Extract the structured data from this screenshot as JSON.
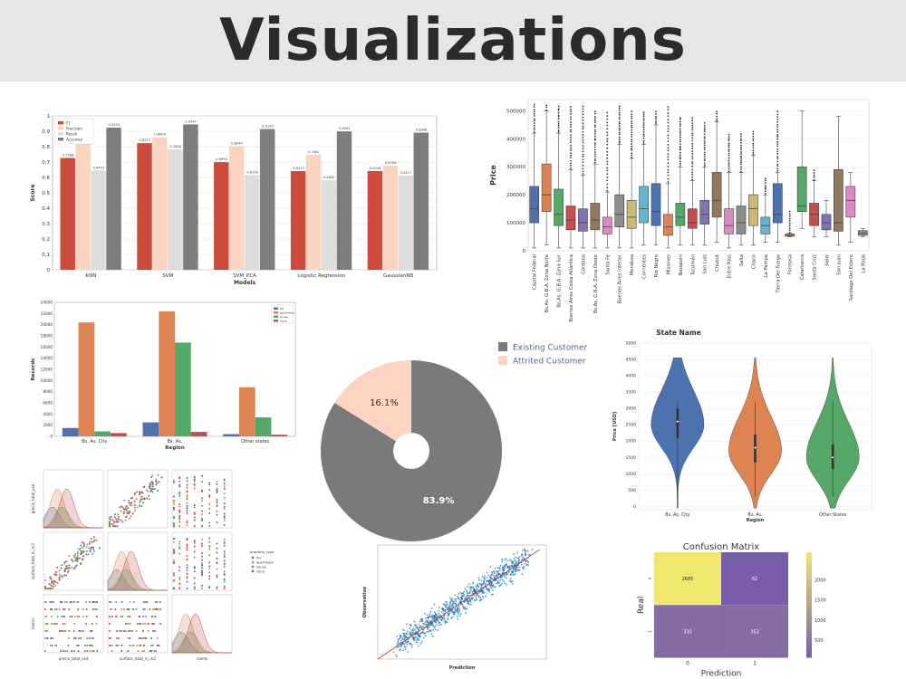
{
  "page": {
    "title": "Visualizations"
  },
  "chart_data": [
    {
      "id": "model-scores",
      "type": "bar",
      "title": "",
      "xlabel": "Models",
      "ylabel": "Score",
      "ylim": [
        0,
        1
      ],
      "yticks": [
        "0",
        "0.1",
        "0.2",
        "0.3",
        "0.4",
        "0.5",
        "0.6",
        "0.7",
        "0.8",
        "0.9",
        "1"
      ],
      "legend_position": "top-left",
      "categories": [
        "KNN",
        "SVM",
        "SVM_PCA",
        "Logistic Regression",
        "GaussianNB"
      ],
      "series": [
        {
          "name": "F1",
          "color": "#cc4b3c",
          "values": [
            0.7268,
            0.8227,
            0.6994,
            0.6413,
            0.6416
          ],
          "labels": [
            "0.7268",
            "0.8227",
            "0.6994",
            "0.6413",
            "0.6416"
          ]
        },
        {
          "name": "Precision",
          "color": "#fad4c0",
          "values": [
            0.8408,
            0.8604,
            0.804,
            0.7482,
            0.6765
          ],
          "labels": [
            "0.8408",
            "0.8604",
            "0.8040",
            "0.7482",
            "0.6765"
          ]
        },
        {
          "name": "Recall",
          "color": "#dcdcdc",
          "values": [
            0.6453,
            0.7826,
            0.6158,
            0.582,
            0.6117
          ],
          "labels": [
            "0.6453",
            "0.7826",
            "0.6158",
            "0.5820",
            "0.6117"
          ]
        },
        {
          "name": "Accuracy",
          "color": "#7d7d7d",
          "values": [
            0.9233,
            0.9447,
            0.9143,
            0.8994,
            0.8908
          ],
          "labels": [
            "0.9233",
            "0.9447",
            "0.9143",
            "0.8994",
            "0.8908"
          ]
        }
      ]
    },
    {
      "id": "price-by-state",
      "type": "box",
      "title": "",
      "xlabel": "State Name",
      "ylabel": "Price",
      "ylim": [
        0,
        540000
      ],
      "yticks": [
        "0",
        "100000",
        "200000",
        "300000",
        "400000",
        "500000"
      ],
      "categories": [
        "Capital Federal",
        "Bs.As. G.B.A. Zona Norte",
        "Bs.As. G.B.A. Zona Sur",
        "Buenos Aires Costa Atlántica",
        "Córdoba",
        "Bs.As. G.B.A. Zona Oeste",
        "Santa Fe",
        "Buenos Aires Interior",
        "Mendoza",
        "Corrientes",
        "Río Negro",
        "Misiones",
        "Neuquén",
        "Tucumán",
        "San Luis",
        "Chubut",
        "Entre Ríos",
        "Salta",
        "Chaco",
        "La Pampa",
        "Tierra Del Fuego",
        "Formosa",
        "Catamarca",
        "Santa Cruz",
        "Jujuy",
        "San Juan",
        "Santiago Del Estero",
        "La Rioja"
      ],
      "colors": [
        "#4c72b0",
        "#dd8452",
        "#55a868",
        "#c44e52",
        "#8172b3",
        "#937860",
        "#da8bc3",
        "#8c8c8c",
        "#ccb974",
        "#64b5cd",
        "#4c72b0",
        "#dd8452",
        "#55a868",
        "#c44e52",
        "#8172b3",
        "#937860",
        "#da8bc3",
        "#8c8c8c",
        "#ccb974",
        "#64b5cd",
        "#4c72b0",
        "#dd8452",
        "#55a868",
        "#c44e52",
        "#8172b3",
        "#937860",
        "#da8bc3",
        "#8c8c8c"
      ],
      "boxes": [
        {
          "min": 10000,
          "q1": 100000,
          "med": 150000,
          "q3": 230000,
          "max": 420000,
          "out_max": 525000
        },
        {
          "min": 20000,
          "q1": 140000,
          "med": 200000,
          "q3": 310000,
          "max": 500000,
          "out_max": 525000
        },
        {
          "min": 10000,
          "q1": 90000,
          "med": 130000,
          "q3": 220000,
          "max": 420000,
          "out_max": 520000
        },
        {
          "min": 10000,
          "q1": 75000,
          "med": 110000,
          "q3": 160000,
          "max": 290000,
          "out_max": 520000
        },
        {
          "min": 10000,
          "q1": 70000,
          "med": 100000,
          "q3": 150000,
          "max": 270000,
          "out_max": 520000
        },
        {
          "min": 10000,
          "q1": 75000,
          "med": 110000,
          "q3": 170000,
          "max": 310000,
          "out_max": 500000
        },
        {
          "min": 10000,
          "q1": 60000,
          "med": 85000,
          "q3": 120000,
          "max": 210000,
          "out_max": 500000
        },
        {
          "min": 10000,
          "q1": 85000,
          "med": 130000,
          "q3": 200000,
          "max": 380000,
          "out_max": 520000
        },
        {
          "min": 10000,
          "q1": 80000,
          "med": 120000,
          "q3": 180000,
          "max": 330000,
          "out_max": 500000
        },
        {
          "min": 20000,
          "q1": 100000,
          "med": 150000,
          "q3": 230000,
          "max": 380000,
          "out_max": 500000
        },
        {
          "min": 20000,
          "q1": 90000,
          "med": 140000,
          "q3": 240000,
          "max": 450000,
          "out_max": 500000
        },
        {
          "min": 10000,
          "q1": 55000,
          "med": 85000,
          "q3": 130000,
          "max": 240000,
          "out_max": 520000
        },
        {
          "min": 20000,
          "q1": 90000,
          "med": 120000,
          "q3": 170000,
          "max": 300000,
          "out_max": 480000
        },
        {
          "min": 20000,
          "q1": 80000,
          "med": 100000,
          "q3": 150000,
          "max": 250000,
          "out_max": 480000
        },
        {
          "min": 20000,
          "q1": 95000,
          "med": 130000,
          "q3": 180000,
          "max": 300000,
          "out_max": 460000
        },
        {
          "min": 30000,
          "q1": 120000,
          "med": 180000,
          "q3": 280000,
          "max": 460000,
          "out_max": 500000
        },
        {
          "min": 10000,
          "q1": 60000,
          "med": 90000,
          "q3": 150000,
          "max": 280000,
          "out_max": 420000
        },
        {
          "min": 20000,
          "q1": 60000,
          "med": 100000,
          "q3": 160000,
          "max": 280000,
          "out_max": 420000
        },
        {
          "min": 20000,
          "q1": 90000,
          "med": 150000,
          "q3": 200000,
          "max": 340000,
          "out_max": 430000
        },
        {
          "min": 30000,
          "q1": 60000,
          "med": 90000,
          "q3": 120000,
          "max": 200000,
          "out_max": 260000
        },
        {
          "min": 30000,
          "q1": 100000,
          "med": 130000,
          "q3": 240000,
          "max": 280000,
          "out_max": 500000
        },
        {
          "min": 50000,
          "q1": 52000,
          "med": 55000,
          "q3": 60000,
          "max": 62000,
          "out_max": 145000
        },
        {
          "min": 80000,
          "q1": 140000,
          "med": 160000,
          "q3": 300000,
          "max": 500000,
          "out_max": 500000
        },
        {
          "min": 50000,
          "q1": 90000,
          "med": 130000,
          "q3": 170000,
          "max": 250000,
          "out_max": 290000
        },
        {
          "min": 50000,
          "q1": 75000,
          "med": 100000,
          "q3": 130000,
          "max": 180000,
          "out_max": 180000
        },
        {
          "min": 20000,
          "q1": 70000,
          "med": 100000,
          "q3": 290000,
          "max": 480000,
          "out_max": 480000
        },
        {
          "min": 30000,
          "q1": 120000,
          "med": 180000,
          "q3": 230000,
          "max": 280000,
          "out_max": 280000
        },
        {
          "min": 50000,
          "q1": 55000,
          "med": 62000,
          "q3": 72000,
          "max": 80000,
          "out_max": 80000
        }
      ]
    },
    {
      "id": "records-by-region",
      "type": "bar",
      "title": "",
      "xlabel": "Region",
      "ylabel": "Records",
      "ylim": [
        0,
        24000
      ],
      "yticks": [
        "0",
        "2000",
        "4000",
        "6000",
        "8000",
        "10000",
        "12000",
        "14000",
        "16000",
        "18000",
        "20000",
        "22000",
        "24000"
      ],
      "legend_position": "top-right",
      "categories": [
        "Bs. As. City",
        "Bs. As.",
        "Other states"
      ],
      "series": [
        {
          "name": "PH",
          "color": "#4c72b0",
          "values": [
            1500,
            2500,
            400
          ]
        },
        {
          "name": "apartment",
          "color": "#dd8452",
          "values": [
            20400,
            22400,
            8800
          ]
        },
        {
          "name": "house",
          "color": "#55a868",
          "values": [
            900,
            16800,
            3400
          ]
        },
        {
          "name": "store",
          "color": "#c44e52",
          "values": [
            600,
            800,
            300
          ]
        }
      ]
    },
    {
      "id": "customer-donut",
      "type": "pie",
      "title": "",
      "legend_position": "top-right",
      "slices": [
        {
          "name": "Existing Customer",
          "value": 83.9,
          "label": "83.9%",
          "color": "#7a7a7a"
        },
        {
          "name": "Attrited Customer",
          "value": 16.1,
          "label": "16.1%",
          "color": "#fdd3c2"
        }
      ]
    },
    {
      "id": "price-violin",
      "type": "violin",
      "title": "",
      "xlabel": "Region",
      "ylabel": "Price [USD]",
      "ylim": [
        -100,
        5000
      ],
      "yticks": [
        "0",
        "500",
        "1000",
        "1500",
        "2000",
        "2500",
        "3000",
        "3500",
        "4000",
        "4500",
        "5000"
      ],
      "categories": [
        "Bs. As. City",
        "Bs. As.",
        "Other States"
      ],
      "colors": [
        "#4c72b0",
        "#dd8452",
        "#55a868"
      ],
      "violins": [
        {
          "min": -50,
          "max": 4550,
          "mode": 2500,
          "q1": 2100,
          "med": 2600,
          "q3": 3000
        },
        {
          "min": -50,
          "max": 4550,
          "mode": 1700,
          "q1": 1350,
          "med": 1800,
          "q3": 2200
        },
        {
          "min": -50,
          "max": 4550,
          "mode": 1500,
          "q1": 1150,
          "med": 1500,
          "q3": 1900
        }
      ]
    },
    {
      "id": "pairplot",
      "type": "scatter",
      "title": "",
      "legend_title": "property_type",
      "legend_position": "right",
      "variables": [
        "precio_total_usd",
        "surface_total_in_m2",
        "rooms"
      ],
      "hue": [
        {
          "name": "PH",
          "color": "#4c72b0"
        },
        {
          "name": "apartment",
          "color": "#dd8452"
        },
        {
          "name": "house",
          "color": "#55a868"
        },
        {
          "name": "store",
          "color": "#c44e52"
        }
      ]
    },
    {
      "id": "prediction-scatter",
      "type": "scatter",
      "title": "",
      "xlabel": "Prediction",
      "ylabel": "Observation",
      "xlim": [
        0,
        5000
      ],
      "ylim": [
        0,
        5000
      ],
      "point_color": "#1f77b4",
      "line_color": "#d62728"
    },
    {
      "id": "confusion-matrix",
      "type": "heatmap",
      "title": "Confusion Matrix",
      "xlabel": "Prediction",
      "ylabel": "Real",
      "x_ticks": [
        "0",
        "1"
      ],
      "y_ticks": [
        "0",
        "1"
      ],
      "cells": [
        [
          2685,
          62
        ],
        [
          335,
          352
        ]
      ],
      "colorbar_ticks": [
        "500",
        "1000",
        "1500",
        "2000"
      ],
      "colorbar_range": [
        62,
        2685
      ]
    }
  ]
}
